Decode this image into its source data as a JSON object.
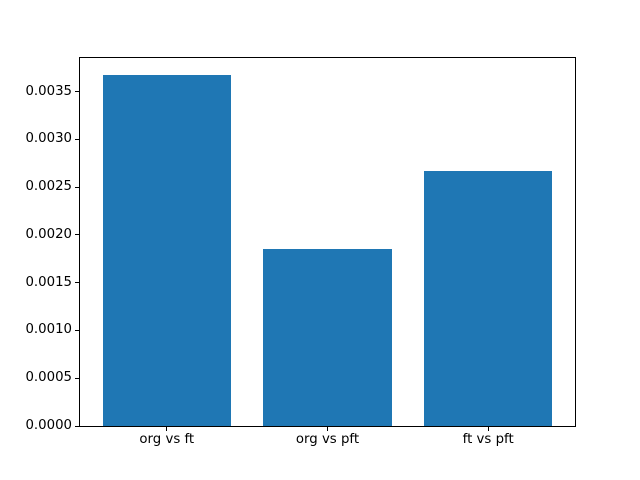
{
  "figure": {
    "background_color": "#ffffff"
  },
  "chart_data": {
    "type": "bar",
    "title": "",
    "xlabel": "",
    "ylabel": "",
    "categories": [
      "org vs ft",
      "org vs pft",
      "ft vs pft"
    ],
    "values": [
      0.00367,
      0.00185,
      0.00267
    ],
    "ylim": [
      0,
      0.00385
    ],
    "yticks": [
      0.0,
      0.0005,
      0.001,
      0.0015,
      0.002,
      0.0025,
      0.003,
      0.0035
    ],
    "ytick_labels": [
      "0.0000",
      "0.0005",
      "0.0010",
      "0.0015",
      "0.0020",
      "0.0025",
      "0.0030",
      "0.0035"
    ],
    "bar_color": "#1f77b4",
    "axis_color": "#000000",
    "grid": false,
    "legend": null,
    "bar_width_fraction": 0.8,
    "x_margin_units": 0.14
  }
}
